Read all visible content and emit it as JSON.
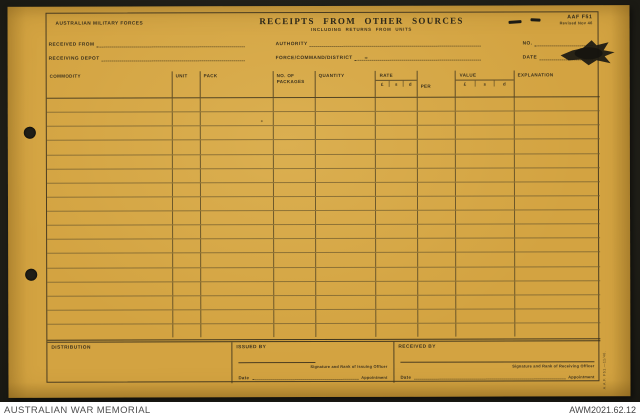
{
  "palette": {
    "paper": "#d3a341",
    "backdrop": "#22211a",
    "ink": "#2f2b20",
    "caption_text": "#4e4e4e"
  },
  "archive": {
    "institution": "AUSTRALIAN WAR MEMORIAL",
    "catalog_id": "AWM2021.62.12"
  },
  "form": {
    "corner_designation": "AUSTRALIAN MILITARY FORCES",
    "title": "RECEIPTS FROM OTHER SOURCES",
    "subtitle": "INCLUDING RETURNS FROM UNITS",
    "form_code": "AAF F51",
    "form_revision": "Revised Nov 46",
    "fields": {
      "received_from": "RECEIVED FROM",
      "receiving_depot": "RECEIVING DEPOT",
      "authority": "AUTHORITY",
      "force_command_district": "FORCE/COMMAND/DISTRICT",
      "no": "NO.",
      "date": "DATE"
    },
    "table": {
      "columns": [
        "COMMODITY",
        "UNIT",
        "PACK",
        "NO. OF PACKAGES",
        "QUANTITY",
        "RATE",
        "PER",
        "VALUE",
        "EXPLANATION"
      ],
      "currency_subcols": [
        "£",
        "s",
        "d"
      ],
      "row_count": 17
    },
    "footer": {
      "distribution": "DISTRIBUTION",
      "issued_by": "ISSUED BY",
      "received_by": "RECEIVED BY",
      "signature_issuing": "Signature and Rank of Issuing Officer",
      "signature_receiving": "Signature and Rank of Receiving Officer",
      "date_label": "Date",
      "appointment_label": "Appointment"
    },
    "imprint": "A.A.F. F51.—11/46."
  }
}
